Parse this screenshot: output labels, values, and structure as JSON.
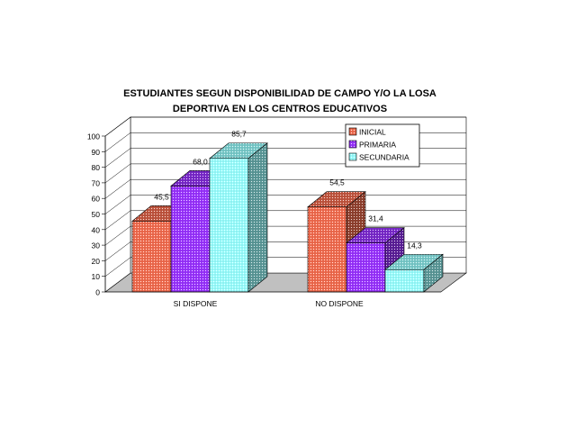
{
  "chart_data": {
    "type": "bar",
    "variant": "3d-clustered-column",
    "title_lines": [
      "ESTUDIANTES SEGUN DISPONIBILIDAD DE CAMPO Y/O LA LOSA",
      "DEPORTIVA EN LOS CENTROS EDUCATIVOS"
    ],
    "categories": [
      "SI DISPONE",
      "NO DISPONE"
    ],
    "series": [
      {
        "name": "INICIAL",
        "values": [
          45.5,
          54.5
        ],
        "labels": [
          "45,5",
          "54,5"
        ],
        "color": "#f26c4f",
        "pattern": "dots"
      },
      {
        "name": "PRIMARIA",
        "values": [
          68.0,
          31.4
        ],
        "labels": [
          "68,0",
          "31,4"
        ],
        "color": "#9933ff",
        "pattern": "dots"
      },
      {
        "name": "SECUNDARIA",
        "values": [
          85.7,
          14.3
        ],
        "labels": [
          "85,7",
          "14,3"
        ],
        "color": "#99ffff",
        "pattern": "dots"
      }
    ],
    "ylim": [
      0,
      100
    ],
    "yticks": [
      "0",
      "10",
      "20",
      "30",
      "40",
      "50",
      "60",
      "70",
      "80",
      "90",
      "100"
    ],
    "grid": true,
    "legend_position": "top-right",
    "floor_color": "#c0c0c0"
  }
}
